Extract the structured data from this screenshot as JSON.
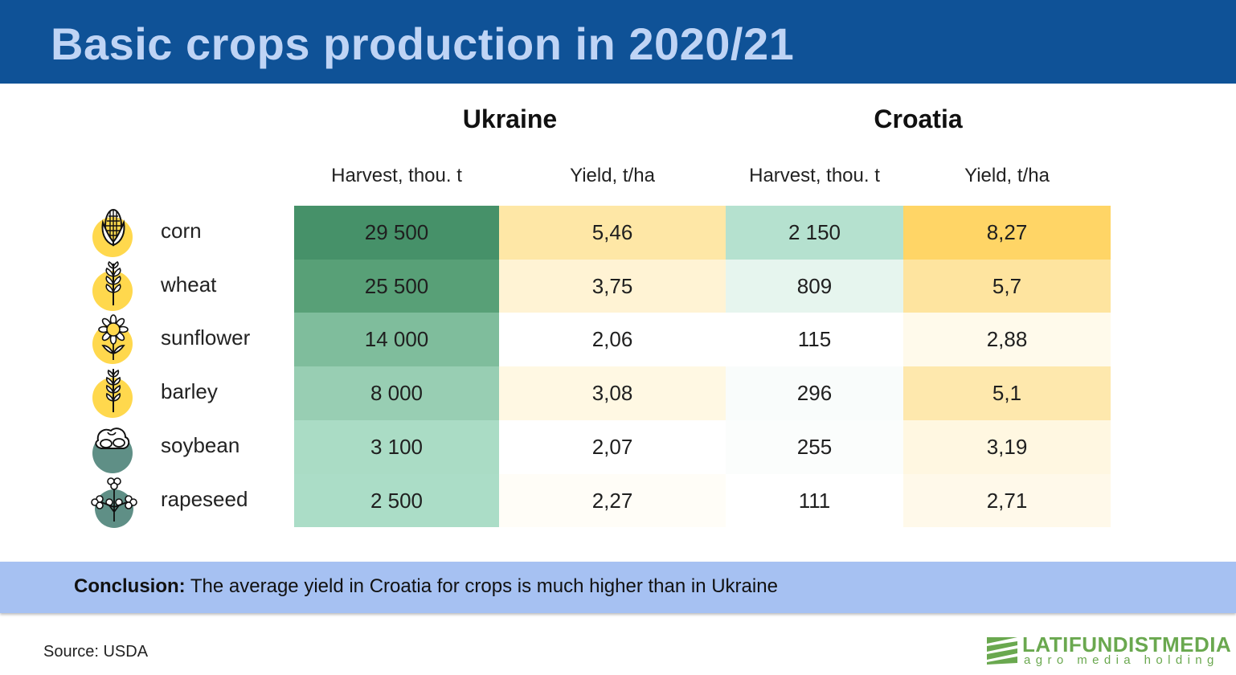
{
  "title": "Basic crops production in 2020/21",
  "colors": {
    "header_bg": "#0f5297",
    "title_text": "#bfd4f5",
    "conclusion_bg": "#a6c1f2",
    "green_scale": [
      "#469169",
      "#59a278",
      "#7dbc9a",
      "#96cdb0",
      "#a9dcc5",
      "#abddc6"
    ],
    "yellow_scale": [
      "#ffd566",
      "#fee49f",
      "#fff2cf",
      "#fff9e8",
      "#ffffff"
    ]
  },
  "countries": [
    "Ukraine",
    "Croatia"
  ],
  "column_headers": [
    "Harvest, thou. t",
    "Yield, t/ha",
    "Harvest, thou. t",
    "Yield, t/ha"
  ],
  "chart_data": {
    "type": "table",
    "title": "Basic crops production in 2020/21",
    "columns": [
      "Ukraine — Harvest, thou. t",
      "Ukraine — Yield, t/ha",
      "Croatia — Harvest, thou. t",
      "Croatia — Yield, t/ha"
    ],
    "rows": [
      {
        "crop": "corn",
        "icon": "corn-icon",
        "values": [
          "29 500",
          "5,46",
          "2 150",
          "8,27"
        ],
        "colors": [
          "#469169",
          "#fee7a6",
          "#b5e1cf",
          "#ffd566"
        ]
      },
      {
        "crop": "wheat",
        "icon": "wheat-icon",
        "values": [
          "25 500",
          "3,75",
          "809",
          "5,7"
        ],
        "colors": [
          "#58a077",
          "#fff3d4",
          "#e6f5ee",
          "#fee49f"
        ]
      },
      {
        "crop": "sunflower",
        "icon": "sunflower-icon",
        "values": [
          "14 000",
          "2,06",
          "115",
          "2,88"
        ],
        "colors": [
          "#7fbd9c",
          "#ffffff",
          "#ffffff",
          "#fffaeb"
        ]
      },
      {
        "crop": "barley",
        "icon": "barley-icon",
        "values": [
          "8 000",
          "3,08",
          "296",
          "5,1"
        ],
        "colors": [
          "#98ceb3",
          "#fff8e3",
          "#f9fcfb",
          "#fee8ad"
        ]
      },
      {
        "crop": "soybean",
        "icon": "soybean-icon",
        "values": [
          "3 100",
          "2,07",
          "255",
          "3,19"
        ],
        "colors": [
          "#aadcc5",
          "#ffffff",
          "#fbfdfc",
          "#fff7e1"
        ]
      },
      {
        "crop": "rapeseed",
        "icon": "rapeseed-icon",
        "values": [
          "2 500",
          "2,27",
          "111",
          "2,71"
        ],
        "colors": [
          "#abddc7",
          "#fffdf7",
          "#ffffff",
          "#fff9ea"
        ]
      }
    ]
  },
  "conclusion": {
    "label": "Conclusion:",
    "text": " The average yield in Croatia for crops is much higher than in Ukraine"
  },
  "source": "Source: USDA",
  "logo": {
    "name": "LATIFUNDISTMEDIA",
    "tagline": "agro media holding"
  }
}
